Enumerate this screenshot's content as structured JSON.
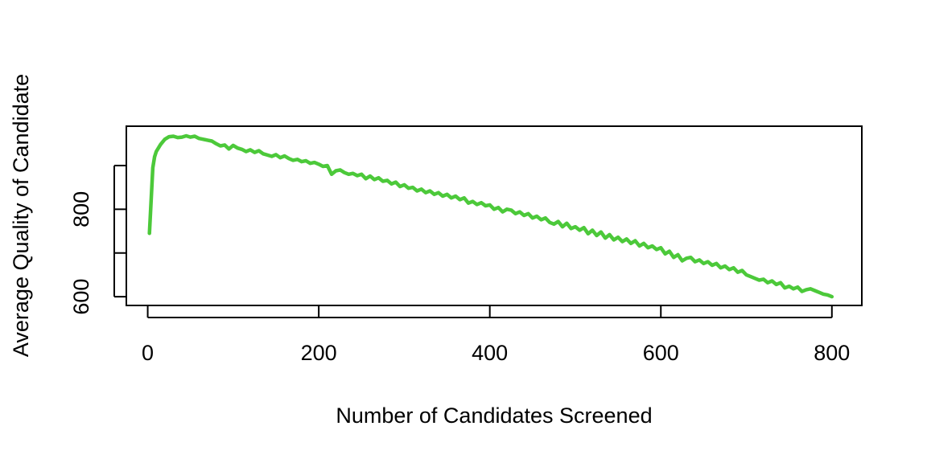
{
  "chart_data": {
    "type": "line",
    "title": "",
    "xlabel": "Number of Candidates Screened",
    "ylabel": "Average Quality of Candidate",
    "xlim": [
      -25,
      835
    ],
    "ylim": [
      580,
      990
    ],
    "x_ticks": [
      0,
      200,
      400,
      600,
      800
    ],
    "x_tick_labels": [
      "0",
      "200",
      "400",
      "600",
      "800"
    ],
    "y_ticks": [
      600,
      700,
      800,
      900
    ],
    "y_tick_labels": [
      "600",
      "",
      "800",
      ""
    ],
    "grid": false,
    "legend": "none",
    "line_color": "#4cc93a",
    "series": [
      {
        "x": [
          2,
          4,
          6,
          8,
          10,
          15,
          20,
          25,
          30,
          35,
          40,
          45,
          50,
          55,
          60,
          65,
          70,
          75,
          80,
          85,
          90,
          95,
          100,
          105,
          110,
          115,
          120,
          125,
          130,
          135,
          140,
          145,
          150,
          155,
          160,
          165,
          170,
          175,
          180,
          185,
          190,
          195,
          200,
          205,
          210,
          215,
          220,
          225,
          230,
          235,
          240,
          245,
          250,
          255,
          260,
          265,
          270,
          275,
          280,
          285,
          290,
          295,
          300,
          305,
          310,
          315,
          320,
          325,
          330,
          335,
          340,
          345,
          350,
          355,
          360,
          365,
          370,
          375,
          380,
          385,
          390,
          395,
          400,
          405,
          410,
          415,
          420,
          425,
          430,
          435,
          440,
          445,
          450,
          455,
          460,
          465,
          470,
          475,
          480,
          485,
          490,
          495,
          500,
          505,
          510,
          515,
          520,
          525,
          530,
          535,
          540,
          545,
          550,
          555,
          560,
          565,
          570,
          575,
          580,
          585,
          590,
          595,
          600,
          605,
          610,
          615,
          620,
          625,
          630,
          635,
          640,
          645,
          650,
          655,
          660,
          665,
          670,
          675,
          680,
          685,
          690,
          695,
          700,
          705,
          710,
          715,
          720,
          725,
          730,
          735,
          740,
          745,
          750,
          755,
          760,
          765,
          770,
          775,
          780,
          785,
          790,
          795,
          800
        ],
        "values": [
          745,
          820,
          895,
          920,
          932,
          948,
          960,
          966,
          967,
          964,
          965,
          968,
          965,
          967,
          962,
          960,
          958,
          956,
          950,
          945,
          947,
          938,
          946,
          940,
          937,
          932,
          936,
          930,
          934,
          927,
          924,
          921,
          925,
          918,
          922,
          916,
          912,
          914,
          909,
          911,
          905,
          907,
          903,
          898,
          900,
          880,
          888,
          890,
          884,
          880,
          882,
          877,
          880,
          870,
          876,
          868,
          872,
          864,
          866,
          858,
          862,
          852,
          856,
          848,
          850,
          842,
          846,
          838,
          842,
          834,
          838,
          830,
          834,
          826,
          830,
          822,
          826,
          814,
          818,
          811,
          815,
          808,
          810,
          800,
          804,
          794,
          800,
          798,
          790,
          794,
          786,
          790,
          780,
          784,
          776,
          780,
          770,
          766,
          772,
          760,
          768,
          756,
          760,
          752,
          758,
          744,
          752,
          740,
          748,
          734,
          742,
          730,
          736,
          726,
          732,
          722,
          728,
          716,
          722,
          712,
          716,
          708,
          712,
          698,
          704,
          690,
          696,
          682,
          688,
          690,
          680,
          684,
          676,
          680,
          672,
          676,
          666,
          670,
          662,
          666,
          656,
          660,
          650,
          646,
          642,
          638,
          640,
          632,
          636,
          628,
          632,
          620,
          624,
          618,
          622,
          612,
          616,
          618,
          614,
          610,
          606,
          604,
          600
        ]
      }
    ]
  }
}
